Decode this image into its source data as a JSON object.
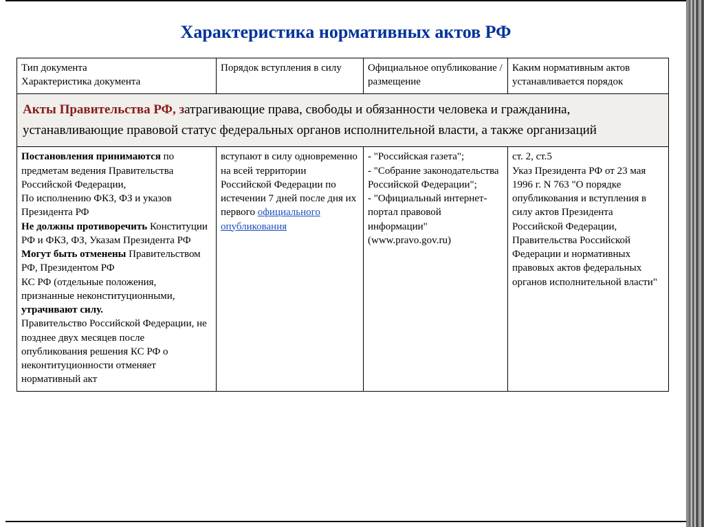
{
  "title": "Характеристика нормативных актов РФ",
  "headers": {
    "col1_line1": "Тип документа",
    "col1_line2": "Характеристика документа",
    "col2": "Порядок вступления в силу",
    "col3": "Официальное опубликование / размещение",
    "col4": "Каким нормативным актов устанавливается порядок"
  },
  "section": {
    "lead_bold": "Акты Правительства РФ, з",
    "rest": "атрагивающие права, свободы и обязанности человека и гражданина, устанавливающие правовой статус федеральных органов исполнительной власти, а также организаций"
  },
  "row": {
    "col1": {
      "p1_b": "Постановления принимаются",
      "p1": " по предметам ведения Правительства Российской Федерации,",
      "p2": "По исполнению ФКЗ, ФЗ и указов Президента РФ",
      "p3_b": "Не должны противоречить",
      "p3": " Конституции РФ и ФКЗ, ФЗ, Указам Президента РФ",
      "p4_b": "Могут быть отменены",
      "p4": " Правительством РФ, Президентом РФ",
      "p5a": "КС РФ (отдельные положения, признанные неконституционными, ",
      "p5_b": "утрачивают силу.",
      "p6": " Правительство Российской Федерации,  не позднее двух месяцев после опубликования решения КС РФ о неконтитуционности отменяет нормативный акт"
    },
    "col2": {
      "t1": "вступают в силу одновременно на всей территории Российской Федерации по истечении 7 дней после дня их",
      "t2": "первого ",
      "link": "официального опубликования"
    },
    "col3": {
      "i1": "- \"Российская газета\";",
      "i2": "- \"Собрание законодательства Российской Федерации\";",
      "i3": "- \"Официальный интернет-портал правовой информации\" (www.pravo.gov.ru)"
    },
    "col4": {
      "t1": "ст. 2, ст.5",
      "t2": "Указ Президента РФ от 23 мая 1996 г. N 763 \"О порядке опубликования и вступления в силу актов Президента Российской Федерации, Правительства Российской Федерации и нормативных правовых актов федеральных органов исполнительной власти\""
    }
  }
}
